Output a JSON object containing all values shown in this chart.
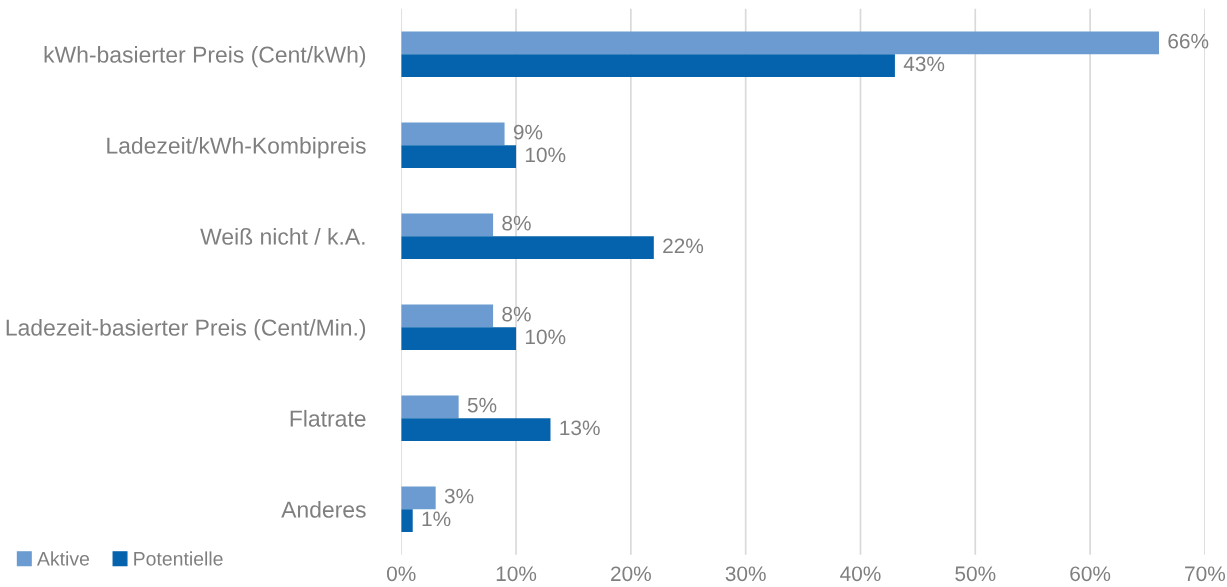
{
  "chart_data": {
    "type": "bar",
    "orientation": "horizontal",
    "categories": [
      "kWh-basierter Preis (Cent/kWh)",
      "Ladezeit/kWh-Kombipreis",
      "Weiß nicht / k.A.",
      "Ladezeit-basierter Preis (Cent/Min.)",
      "Flatrate",
      "Anderes"
    ],
    "series": [
      {
        "name": "Aktive",
        "color": "#6b9bd0",
        "values": [
          66,
          9,
          8,
          8,
          5,
          3
        ],
        "value_labels": [
          "66%",
          "9%",
          "8%",
          "8%",
          "5%",
          "3%"
        ]
      },
      {
        "name": "Potentielle",
        "color": "#0563ad",
        "values": [
          43,
          10,
          22,
          10,
          13,
          1
        ],
        "value_labels": [
          "43%",
          "10%",
          "22%",
          "10%",
          "13%",
          "1%"
        ]
      }
    ],
    "xlim": [
      0,
      70
    ],
    "xticks": [
      {
        "value": 0,
        "label": "0%"
      },
      {
        "value": 10,
        "label": "10%"
      },
      {
        "value": 20,
        "label": "20%"
      },
      {
        "value": 30,
        "label": "30%"
      },
      {
        "value": 40,
        "label": "40%"
      },
      {
        "value": 50,
        "label": "50%"
      },
      {
        "value": 60,
        "label": "60%"
      },
      {
        "value": 70,
        "label": "70%"
      }
    ],
    "grid": "x",
    "legend": "bottom left"
  }
}
